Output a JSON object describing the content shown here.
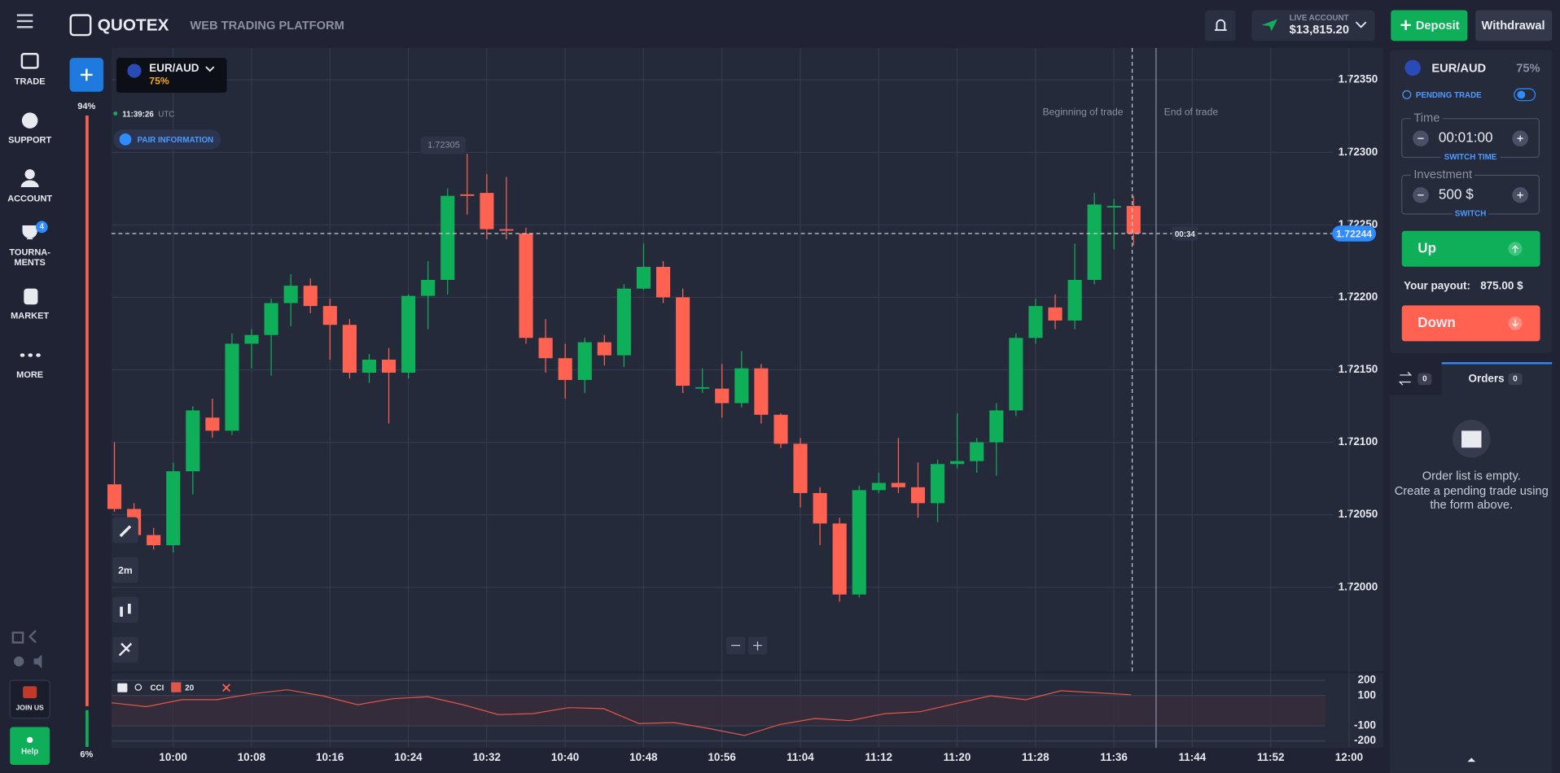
{
  "header": {
    "brand": "QUOTEX",
    "tagline": "WEB TRADING PLATFORM",
    "account_type": "LIVE ACCOUNT",
    "balance": "$13,815.20",
    "deposit": "Deposit",
    "withdrawal": "Withdrawal"
  },
  "sidebar": {
    "items": [
      "TRADE",
      "SUPPORT",
      "ACCOUNT",
      "TOURNA-",
      "MENTS",
      "MARKET",
      "MORE"
    ],
    "badge": "4",
    "join": "JOIN US",
    "help": "Help"
  },
  "sentiment": {
    "up": "94%",
    "down": "6%"
  },
  "asset": {
    "pair": "EUR/AUD",
    "payout": "75%",
    "time": "11:39:26",
    "zone": "UTC",
    "info": "PAIR INFORMATION"
  },
  "chart_data": [
    {
      "type": "candlestick",
      "up_color": "#0faf59",
      "down_color": "#ff6251",
      "open": [
        1.72071,
        1.72054,
        1.72036,
        1.72029,
        1.7208,
        1.72117,
        1.72108,
        1.72168,
        1.72174,
        1.72196,
        1.72208,
        1.72194,
        1.72181,
        1.72148,
        1.72157,
        1.72148,
        1.72201,
        1.72212,
        1.72271,
        1.72272,
        1.72247,
        1.72244,
        1.72172,
        1.72158,
        1.72143,
        1.72169,
        1.7216,
        1.72206,
        1.72221,
        1.722,
        1.72137,
        1.72137,
        1.72127,
        1.72151,
        1.72119,
        1.72099,
        1.72065,
        1.72044,
        1.71995,
        1.72067,
        1.72072,
        1.72069,
        1.72058,
        1.72085,
        1.72087,
        1.721,
        1.72122,
        1.72172,
        1.72193,
        1.72184,
        1.72212,
        1.72262,
        1.72263
      ],
      "high": [
        1.721,
        1.72058,
        1.72041,
        1.72086,
        1.72125,
        1.7213,
        1.72175,
        1.72178,
        1.72199,
        1.72216,
        1.72213,
        1.72199,
        1.72185,
        1.72161,
        1.72165,
        1.72202,
        1.72225,
        1.72275,
        1.72299,
        1.72285,
        1.72283,
        1.72248,
        1.72185,
        1.72168,
        1.72172,
        1.72174,
        1.72209,
        1.72237,
        1.72225,
        1.72206,
        1.72151,
        1.72154,
        1.72163,
        1.72154,
        1.7212,
        1.72103,
        1.72069,
        1.72048,
        1.7207,
        1.72079,
        1.72103,
        1.72086,
        1.72088,
        1.7212,
        1.72103,
        1.72127,
        1.72175,
        1.72199,
        1.72202,
        1.72237,
        1.72272,
        1.72268,
        1.7227
      ],
      "low": [
        1.72052,
        1.72031,
        1.72026,
        1.72024,
        1.72064,
        1.72103,
        1.72105,
        1.72151,
        1.72146,
        1.7218,
        1.72189,
        1.72157,
        1.72144,
        1.72141,
        1.72113,
        1.72144,
        1.72178,
        1.72202,
        1.72257,
        1.7224,
        1.7224,
        1.72168,
        1.72148,
        1.7213,
        1.72134,
        1.72153,
        1.72152,
        1.72205,
        1.72196,
        1.72134,
        1.72134,
        1.72117,
        1.72124,
        1.72113,
        1.72096,
        1.72055,
        1.72029,
        1.7199,
        1.71993,
        1.72065,
        1.72065,
        1.72048,
        1.72045,
        1.72082,
        1.72079,
        1.72077,
        1.72118,
        1.72168,
        1.72178,
        1.72178,
        1.72209,
        1.72233,
        1.72236
      ],
      "close": [
        1.72054,
        1.72036,
        1.72029,
        1.7208,
        1.72122,
        1.72108,
        1.72168,
        1.72174,
        1.72196,
        1.72208,
        1.72194,
        1.72181,
        1.72148,
        1.72157,
        1.72148,
        1.72201,
        1.72212,
        1.7227,
        1.7227,
        1.72247,
        1.72246,
        1.72172,
        1.72158,
        1.72143,
        1.72169,
        1.7216,
        1.72206,
        1.72221,
        1.722,
        1.72139,
        1.72138,
        1.72127,
        1.72151,
        1.72119,
        1.72099,
        1.72065,
        1.72044,
        1.71995,
        1.72067,
        1.72072,
        1.72069,
        1.72058,
        1.72085,
        1.72087,
        1.721,
        1.72122,
        1.72172,
        1.72194,
        1.72184,
        1.72212,
        1.72264,
        1.72263,
        1.72244
      ],
      "ylim": [
        1.71942,
        1.72372
      ],
      "yticks": [
        {
          "value": 1.7235,
          "label": "1.72350"
        },
        {
          "value": 1.723,
          "label": "1.72300"
        },
        {
          "value": 1.7225,
          "label": "1.72250"
        },
        {
          "value": 1.722,
          "label": "1.72200"
        },
        {
          "value": 1.7215,
          "label": "1.72150"
        },
        {
          "value": 1.721,
          "label": "1.72100"
        },
        {
          "value": 1.7205,
          "label": "1.72050"
        },
        {
          "value": 1.72,
          "label": "1.72000"
        }
      ],
      "xticks": [
        "10:00",
        "10:08",
        "10:16",
        "10:24",
        "10:32",
        "10:40",
        "10:48",
        "10:56",
        "11:04",
        "11:12",
        "11:20",
        "11:28",
        "11:36",
        "11:44",
        "11:52",
        "12:00"
      ],
      "current_price": {
        "value": 1.72244,
        "label": "1.72244"
      },
      "countdown": "00:34",
      "marker": "1.72305",
      "annotations": [
        "Beginning of trade",
        "End of trade"
      ],
      "timeframe": "2m",
      "grid": true
    },
    {
      "type": "line",
      "name": "CCI",
      "period": "20",
      "color": "#e0574a",
      "values": [
        52,
        26,
        72,
        72,
        111,
        138,
        98,
        39,
        79,
        92,
        39,
        -26,
        -20,
        20,
        13,
        -85,
        -79,
        -118,
        -164,
        -92,
        -52,
        -66,
        -20,
        -7,
        46,
        98,
        72,
        131,
        118,
        105
      ],
      "ylim": [
        -246,
        246
      ],
      "yticks": [
        200,
        100,
        -100,
        -200
      ]
    }
  ],
  "trade_panel": {
    "pair": "EUR/AUD",
    "payout": "75%",
    "pending": "PENDING TRADE",
    "time_label": "Time",
    "time": "00:01:00",
    "switch_time": "SWITCH TIME",
    "investment_label": "Investment",
    "investment": "500 $",
    "switch": "SWITCH",
    "up": "Up",
    "payout_label": "Your payout:",
    "payout_value": "875.00 $",
    "down": "Down"
  },
  "orders": {
    "count_a": "0",
    "title": "Orders",
    "count_b": "0",
    "empty": [
      "Order list is empty.",
      "Create a pending trade using",
      "the form above."
    ]
  }
}
